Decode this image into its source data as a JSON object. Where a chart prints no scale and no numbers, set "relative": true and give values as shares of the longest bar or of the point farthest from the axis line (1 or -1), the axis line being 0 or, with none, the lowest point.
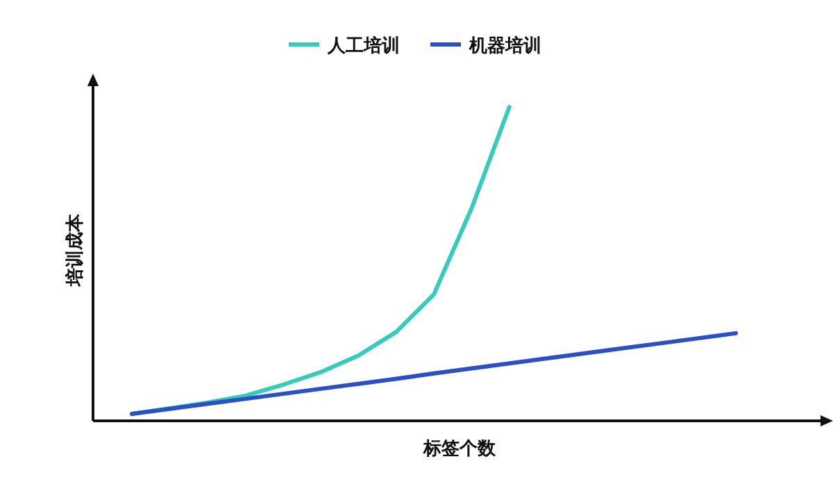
{
  "chart_data": {
    "type": "line",
    "relative": true,
    "xlabel": "标签个数",
    "ylabel": "培训成本",
    "legend": "top",
    "categories": [
      null,
      null,
      null,
      null,
      null,
      null,
      null,
      null,
      null,
      null,
      null,
      null,
      null,
      null,
      null,
      null,
      null
    ],
    "series": [
      {
        "name": "人工培训",
        "color": "#35cbbd",
        "values": [
          0.022,
          0.04,
          0.058,
          0.08,
          0.115,
          0.155,
          0.208,
          0.283,
          0.403,
          0.677,
          1,
          null,
          null,
          null,
          null,
          null,
          null
        ]
      },
      {
        "name": "机器培训",
        "color": "#2b4fc4",
        "values": [
          0.022,
          0.038,
          0.054,
          0.07,
          0.086,
          0.102,
          0.118,
          0.134,
          0.151,
          0.167,
          0.183,
          0.199,
          0.215,
          0.231,
          0.247,
          0.263,
          0.279
        ]
      }
    ]
  }
}
